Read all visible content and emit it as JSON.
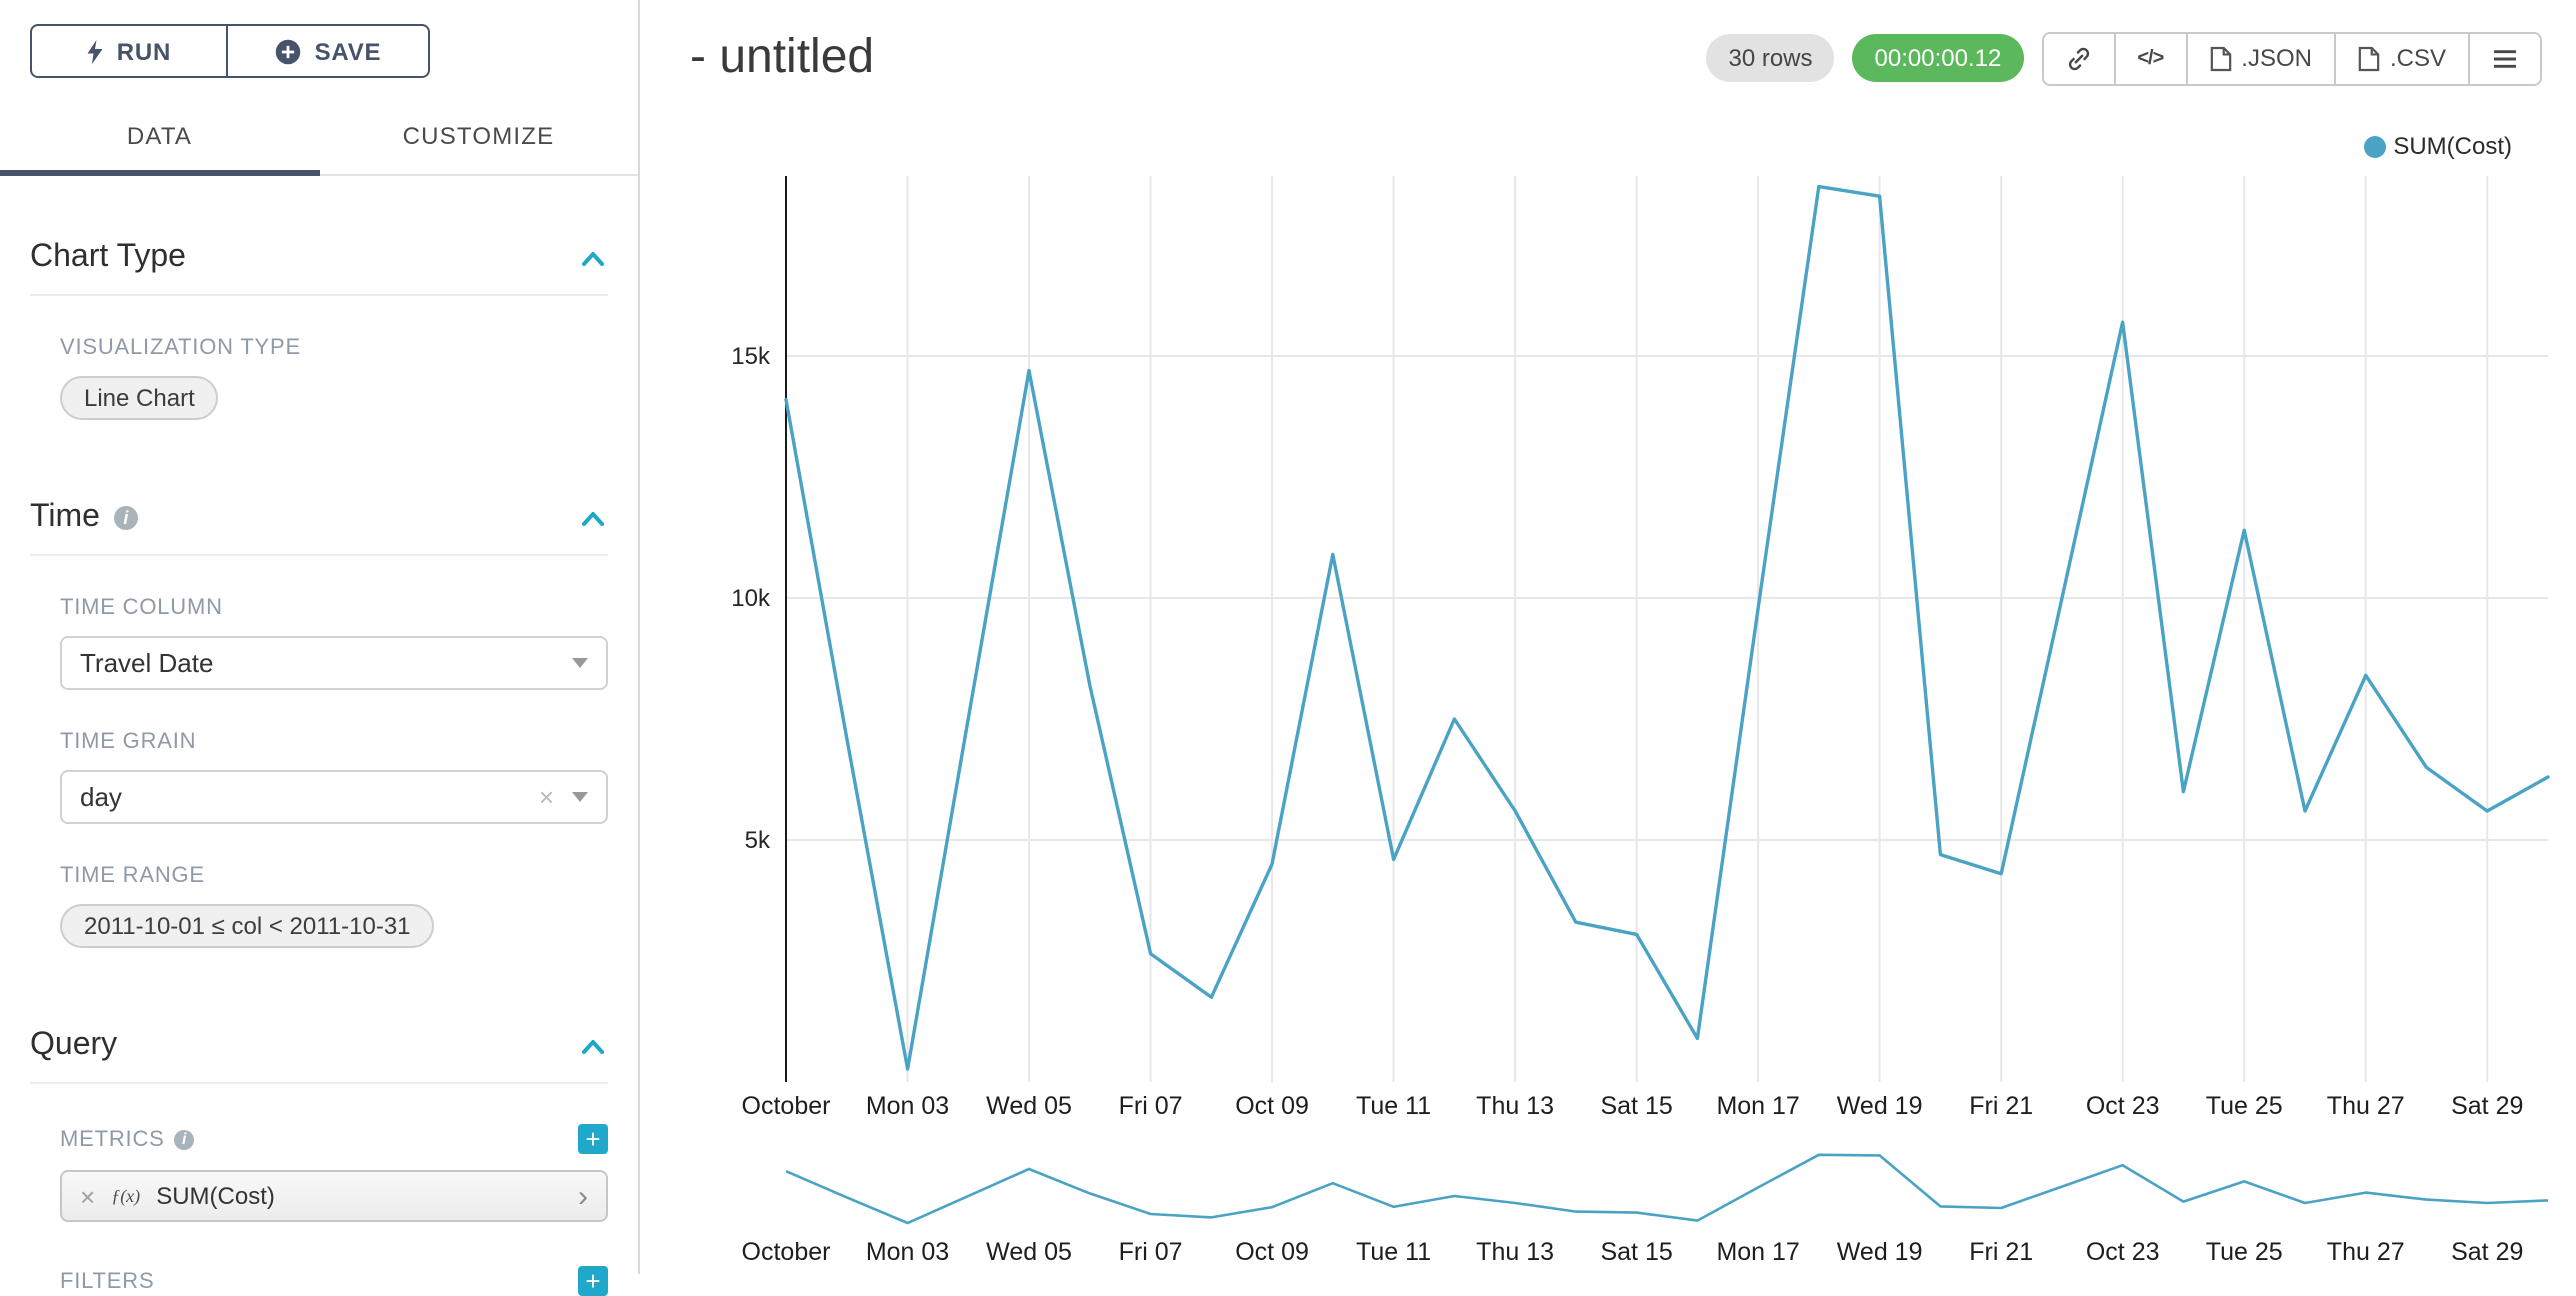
{
  "colors": {
    "accent_teal": "#1FA8C9",
    "navy": "#46536B",
    "timer_green": "#5CB85C",
    "line": "#4AA3C4"
  },
  "icons": {
    "clear_x": "×",
    "chevron_right": "›",
    "info": "i",
    "plus": "+",
    "code": "</>",
    "fx": "ƒ(x)"
  },
  "sidebar": {
    "run_label": "RUN",
    "save_label": "SAVE",
    "tabs": [
      {
        "label": "DATA",
        "active": true
      },
      {
        "label": "CUSTOMIZE",
        "active": false
      }
    ],
    "sections": {
      "chart_type": {
        "title": "Chart Type",
        "viz_type_label": "VISUALIZATION TYPE",
        "viz_type_value": "Line Chart"
      },
      "time": {
        "title": "Time",
        "time_column_label": "TIME COLUMN",
        "time_column_value": "Travel Date",
        "time_grain_label": "TIME GRAIN",
        "time_grain_value": "day",
        "time_range_label": "TIME RANGE",
        "time_range_value": "2011-10-01 ≤ col < 2011-10-31"
      },
      "query": {
        "title": "Query",
        "metrics_label": "METRICS",
        "metric_value": "SUM(Cost)",
        "filters_label": "FILTERS"
      }
    }
  },
  "header": {
    "title": "- untitled",
    "rows_badge": "30 rows",
    "timer_badge": "00:00:00.12",
    "export": {
      "json_label": ".JSON",
      "csv_label": ".CSV"
    }
  },
  "legend": {
    "label": "SUM(Cost)"
  },
  "chart_data": {
    "type": "line",
    "title": "- untitled",
    "x": [
      "2011-10-01",
      "2011-10-02",
      "2011-10-03",
      "2011-10-04",
      "2011-10-05",
      "2011-10-06",
      "2011-10-07",
      "2011-10-08",
      "2011-10-09",
      "2011-10-10",
      "2011-10-11",
      "2011-10-12",
      "2011-10-13",
      "2011-10-14",
      "2011-10-15",
      "2011-10-16",
      "2011-10-17",
      "2011-10-18",
      "2011-10-19",
      "2011-10-20",
      "2011-10-21",
      "2011-10-22",
      "2011-10-23",
      "2011-10-24",
      "2011-10-25",
      "2011-10-26",
      "2011-10-27",
      "2011-10-28",
      "2011-10-29",
      "2011-10-30"
    ],
    "series": [
      {
        "name": "SUM(Cost)",
        "values": [
          14100,
          7100,
          270,
          7500,
          14700,
          8200,
          2650,
          1750,
          4500,
          10900,
          4600,
          7500,
          5600,
          3300,
          3050,
          900,
          9800,
          18500,
          18300,
          4700,
          4300,
          10000,
          15700,
          6000,
          11400,
          5600,
          8400,
          6500,
          5600,
          6300
        ]
      }
    ],
    "x_tick_indices": [
      0,
      2,
      4,
      6,
      8,
      10,
      12,
      14,
      16,
      18,
      20,
      22,
      24,
      26,
      28
    ],
    "x_tick_labels": [
      "October",
      "Mon 03",
      "Wed 05",
      "Fri 07",
      "Oct 09",
      "Tue 11",
      "Thu 13",
      "Sat 15",
      "Mon 17",
      "Wed 19",
      "Fri 21",
      "Oct 23",
      "Tue 25",
      "Thu 27",
      "Sat 29"
    ],
    "y_tick_values": [
      5000,
      10000,
      15000
    ],
    "y_tick_labels": [
      "5k",
      "10k",
      "15k"
    ],
    "ylim": [
      0,
      18700
    ],
    "xlabel": "",
    "ylabel": "",
    "grid": true,
    "line_color": "#4AA3C4",
    "legend": [
      "SUM(Cost)"
    ],
    "legend_position": "top-right",
    "has_minimap": true
  }
}
